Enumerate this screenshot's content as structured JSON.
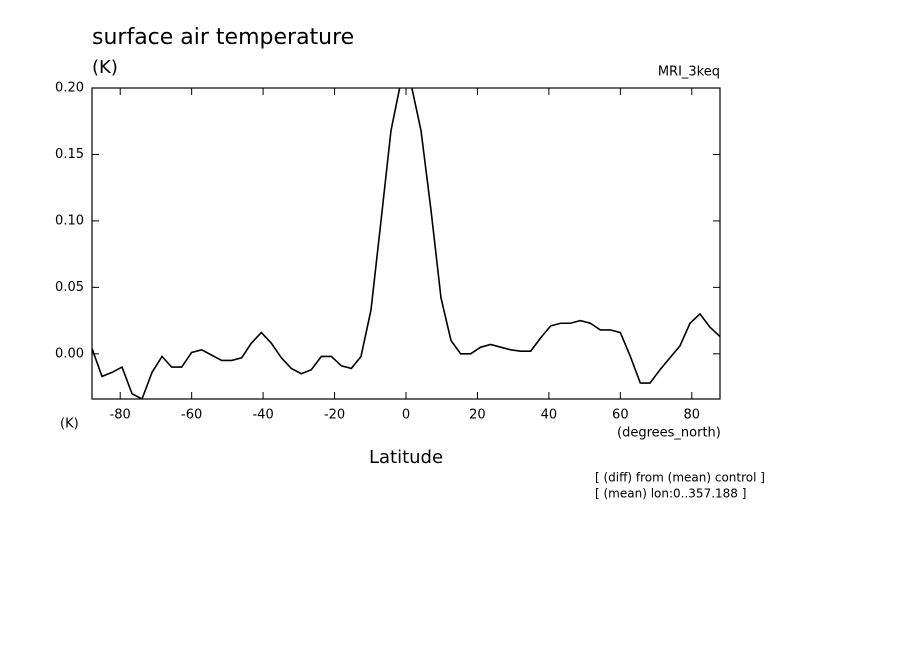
{
  "chart_data": {
    "type": "line",
    "title": "surface air temperature",
    "ylabel": "(K)",
    "subtitle_right": "MRI_3keq",
    "yunit": "(K)",
    "xunit": "(degrees_north)",
    "xlabel": "Latitude",
    "notes": [
      "[ (diff) from (mean) control ]",
      "[ (mean) lon:0..357.188 ]"
    ],
    "x": [
      -87.9,
      -85.1,
      -82.3,
      -79.5,
      -76.7,
      -73.9,
      -71.1,
      -68.3,
      -65.6,
      -62.8,
      -60.0,
      -57.2,
      -54.4,
      -51.6,
      -48.8,
      -46.0,
      -43.3,
      -40.5,
      -37.7,
      -34.9,
      -32.1,
      -29.3,
      -26.5,
      -23.7,
      -20.9,
      -18.1,
      -15.3,
      -12.6,
      -9.8,
      -7.0,
      -4.2,
      -1.4,
      1.4,
      4.2,
      7.0,
      9.8,
      12.6,
      15.3,
      18.1,
      20.9,
      23.7,
      26.5,
      29.3,
      32.1,
      34.9,
      37.7,
      40.5,
      43.3,
      46.0,
      48.8,
      51.6,
      54.4,
      57.2,
      60.0,
      62.8,
      65.6,
      68.3,
      71.1,
      73.9,
      76.7,
      79.5,
      82.3,
      85.1,
      87.9
    ],
    "series": [
      {
        "name": "surface air temperature",
        "color": "#000000",
        "values": [
          0.004,
          -0.017,
          -0.014,
          -0.01,
          -0.03,
          -0.034,
          -0.014,
          -0.002,
          -0.01,
          -0.01,
          0.001,
          0.003,
          -0.001,
          -0.005,
          -0.005,
          -0.003,
          0.008,
          0.016,
          0.008,
          -0.003,
          -0.011,
          -0.015,
          -0.012,
          -0.002,
          -0.002,
          -0.009,
          -0.011,
          -0.002,
          0.033,
          0.1,
          0.168,
          0.205,
          0.203,
          0.168,
          0.108,
          0.042,
          0.01,
          0.0,
          0.0,
          0.005,
          0.007,
          0.005,
          0.003,
          0.002,
          0.002,
          0.012,
          0.021,
          0.023,
          0.023,
          0.025,
          0.023,
          0.018,
          0.018,
          0.016,
          -0.002,
          -0.022,
          -0.022,
          -0.012,
          -0.003,
          0.006,
          0.023,
          0.03,
          0.02,
          0.013
        ]
      }
    ],
    "xlim": [
      -87.9,
      87.9
    ],
    "ylim": [
      -0.034,
      0.2
    ],
    "xticks": [
      -80,
      -60,
      -40,
      -20,
      0,
      20,
      40,
      60,
      80
    ],
    "yticks": [
      {
        "value": 0,
        "label": "0.00"
      },
      {
        "value": 0.05,
        "label": "0.05"
      },
      {
        "value": 0.1,
        "label": "0.10"
      },
      {
        "value": 0.15,
        "label": "0.15"
      },
      {
        "value": 0.2,
        "label": "0.20"
      }
    ],
    "grid": false
  }
}
